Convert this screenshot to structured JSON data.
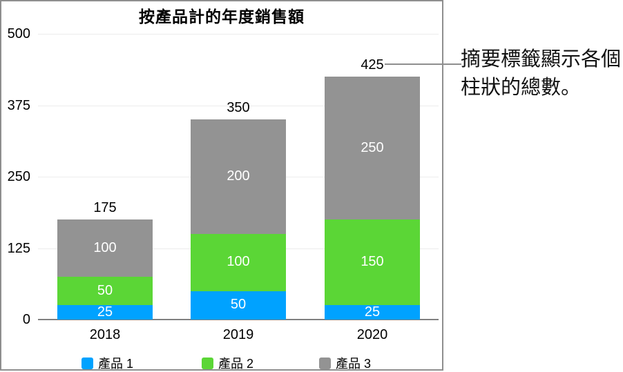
{
  "chart_data": {
    "type": "bar",
    "stacked": true,
    "title": "按產品計的年度銷售額",
    "categories": [
      "2018",
      "2019",
      "2020"
    ],
    "series": [
      {
        "name": "產品 1",
        "color": "#00a2ff",
        "values": [
          25,
          50,
          25
        ]
      },
      {
        "name": "產品 2",
        "color": "#5bd636",
        "values": [
          50,
          100,
          150
        ]
      },
      {
        "name": "產品 3",
        "color": "#939393",
        "values": [
          100,
          200,
          250
        ]
      }
    ],
    "totals": [
      175,
      350,
      425
    ],
    "y_ticks": [
      0,
      125,
      250,
      375,
      500
    ],
    "ylim": [
      0,
      500
    ],
    "grid": true,
    "legend_position": "bottom",
    "xlabel": "",
    "ylabel": "",
    "colors": {
      "gridline": "#ececec",
      "axis": "#808080",
      "panel_border": "#8e8e8e",
      "segment_label": "#ffffff",
      "text": "#000000"
    }
  },
  "callout": {
    "line1": "摘要標籤顯示各個",
    "line2": "柱狀的總數。"
  }
}
